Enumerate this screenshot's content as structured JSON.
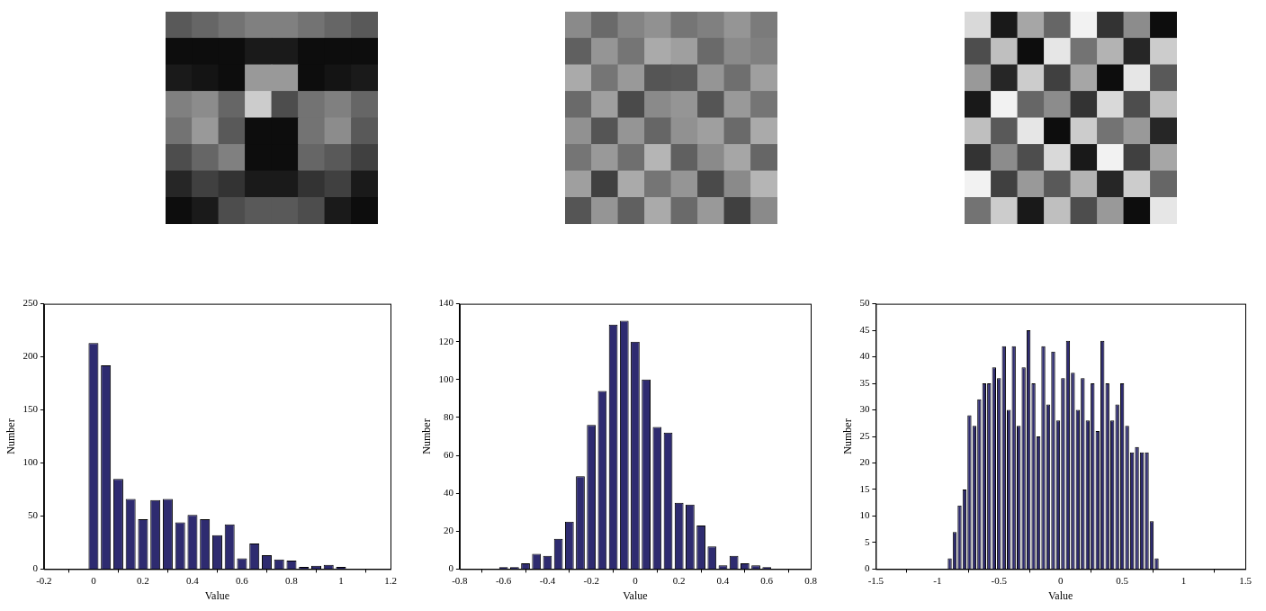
{
  "chart_data": [
    {
      "type": "image",
      "color": "gray",
      "tick_labels": false,
      "color_range": [
        0,
        1
      ],
      "cells": [
        [
          0.35,
          0.4,
          0.45,
          0.5,
          0.5,
          0.45,
          0.4,
          0.35
        ],
        [
          0.05,
          0.05,
          0.05,
          0.1,
          0.1,
          0.05,
          0.05,
          0.05
        ],
        [
          0.1,
          0.08,
          0.05,
          0.6,
          0.6,
          0.05,
          0.08,
          0.1
        ],
        [
          0.5,
          0.55,
          0.4,
          0.8,
          0.3,
          0.45,
          0.5,
          0.4
        ],
        [
          0.45,
          0.6,
          0.35,
          0.05,
          0.05,
          0.45,
          0.55,
          0.35
        ],
        [
          0.3,
          0.4,
          0.5,
          0.05,
          0.05,
          0.4,
          0.35,
          0.25
        ],
        [
          0.15,
          0.25,
          0.2,
          0.1,
          0.1,
          0.2,
          0.25,
          0.1
        ],
        [
          0.05,
          0.1,
          0.3,
          0.35,
          0.35,
          0.3,
          0.1,
          0.05
        ]
      ]
    },
    {
      "type": "image",
      "color": "gray",
      "tick_labels": false,
      "color_range": [
        -0.6,
        0.6
      ],
      "cells": [
        [
          0.05,
          -0.1,
          0.02,
          0.08,
          -0.05,
          0.0,
          0.1,
          -0.02
        ],
        [
          -0.15,
          0.1,
          -0.05,
          0.2,
          0.15,
          -0.1,
          0.05,
          0.0
        ],
        [
          0.2,
          -0.05,
          0.12,
          -0.2,
          -0.18,
          0.1,
          -0.08,
          0.15
        ],
        [
          -0.1,
          0.15,
          -0.25,
          0.05,
          0.1,
          -0.2,
          0.12,
          -0.05
        ],
        [
          0.08,
          -0.2,
          0.1,
          -0.12,
          0.08,
          0.15,
          -0.1,
          0.2
        ],
        [
          -0.05,
          0.12,
          -0.08,
          0.25,
          -0.15,
          0.05,
          0.18,
          -0.12
        ],
        [
          0.15,
          -0.3,
          0.2,
          -0.05,
          0.1,
          -0.25,
          0.05,
          0.25
        ],
        [
          -0.2,
          0.1,
          -0.15,
          0.2,
          -0.1,
          0.12,
          -0.3,
          0.05
        ]
      ]
    },
    {
      "type": "image",
      "color": "gray",
      "tick_labels": false,
      "color_range": [
        -1,
        1
      ],
      "cells": [
        [
          0.7,
          -0.8,
          0.3,
          -0.2,
          0.9,
          -0.6,
          0.1,
          -0.9
        ],
        [
          -0.4,
          0.5,
          -0.9,
          0.8,
          -0.1,
          0.4,
          -0.7,
          0.6
        ],
        [
          0.2,
          -0.7,
          0.6,
          -0.5,
          0.3,
          -0.9,
          0.8,
          -0.3
        ],
        [
          -0.8,
          0.9,
          -0.2,
          0.1,
          -0.6,
          0.7,
          -0.4,
          0.5
        ],
        [
          0.5,
          -0.3,
          0.8,
          -0.9,
          0.6,
          -0.1,
          0.2,
          -0.7
        ],
        [
          -0.6,
          0.1,
          -0.4,
          0.7,
          -0.8,
          0.9,
          -0.5,
          0.3
        ],
        [
          0.9,
          -0.5,
          0.2,
          -0.3,
          0.4,
          -0.7,
          0.6,
          -0.2
        ],
        [
          -0.1,
          0.6,
          -0.8,
          0.5,
          -0.4,
          0.2,
          -0.9,
          0.8
        ]
      ]
    },
    {
      "type": "histogram",
      "color": "#2e2b70",
      "grid": false,
      "x_label": "Value",
      "y_label": "Number",
      "bins": [
        -0.025,
        0.025,
        0.075,
        0.125,
        0.175,
        0.225,
        0.275,
        0.325,
        0.375,
        0.425,
        0.475,
        0.525,
        0.575,
        0.625,
        0.675,
        0.725,
        0.775,
        0.825,
        0.875,
        0.925,
        0.975,
        1.025
      ],
      "values": [
        213,
        192,
        85,
        66,
        47,
        65,
        66,
        44,
        51,
        47,
        32,
        42,
        10,
        24,
        13,
        9,
        8,
        2,
        3,
        4,
        2
      ],
      "xlim": [
        -0.2,
        1.2
      ],
      "xticks": [
        -0.2,
        0,
        0.2,
        0.4,
        0.6,
        0.8,
        1,
        1.2
      ],
      "ylim": [
        0,
        250
      ],
      "yticks": [
        0,
        50,
        100,
        150,
        200,
        250
      ]
    },
    {
      "type": "histogram",
      "color": "#2e2b70",
      "grid": false,
      "x_label": "Value",
      "y_label": "Number",
      "bins": [
        -0.725,
        -0.675,
        -0.625,
        -0.575,
        -0.525,
        -0.475,
        -0.425,
        -0.375,
        -0.325,
        -0.275,
        -0.225,
        -0.175,
        -0.125,
        -0.075,
        -0.025,
        0.025,
        0.075,
        0.125,
        0.175,
        0.225,
        0.275,
        0.325,
        0.375,
        0.425,
        0.475,
        0.525,
        0.575,
        0.625,
        0.675,
        0.725
      ],
      "values": [
        0,
        0,
        1,
        1,
        3,
        8,
        7,
        16,
        25,
        49,
        76,
        94,
        129,
        131,
        120,
        100,
        75,
        72,
        35,
        34,
        23,
        12,
        2,
        7,
        3,
        2,
        1,
        0,
        0
      ],
      "xlim": [
        -0.8,
        0.8
      ],
      "xticks": [
        -0.8,
        -0.6,
        -0.4,
        -0.2,
        0,
        0.2,
        0.4,
        0.6,
        0.8
      ],
      "ylim": [
        0,
        140
      ],
      "yticks": [
        0,
        20,
        40,
        60,
        80,
        100,
        120,
        140
      ]
    },
    {
      "type": "histogram",
      "color": "#2e2b70",
      "grid": false,
      "x_label": "Value",
      "y_label": "Number",
      "bins": [
        -0.96,
        -0.92,
        -0.88,
        -0.84,
        -0.8,
        -0.76,
        -0.72,
        -0.68,
        -0.64,
        -0.6,
        -0.56,
        -0.52,
        -0.48,
        -0.44,
        -0.4,
        -0.36,
        -0.32,
        -0.28,
        -0.24,
        -0.2,
        -0.16,
        -0.12,
        -0.08,
        -0.04,
        0,
        0.04,
        0.08,
        0.12,
        0.16,
        0.2,
        0.24,
        0.28,
        0.32,
        0.36,
        0.4,
        0.44,
        0.48,
        0.52,
        0.56,
        0.6,
        0.64,
        0.68,
        0.72,
        0.76,
        0.8,
        0.84,
        0.88,
        0.92,
        0.96
      ],
      "values": [
        0,
        2,
        7,
        12,
        15,
        29,
        27,
        32,
        35,
        35,
        38,
        36,
        42,
        30,
        42,
        27,
        38,
        45,
        35,
        25,
        42,
        31,
        41,
        28,
        36,
        43,
        37,
        30,
        36,
        28,
        35,
        26,
        43,
        35,
        28,
        31,
        35,
        27,
        22,
        23,
        22,
        22,
        9,
        2,
        0,
        0,
        0,
        0
      ],
      "xlim": [
        -1.5,
        1.5
      ],
      "xticks": [
        -1.5,
        -1,
        -0.5,
        0,
        0.5,
        1,
        1.5
      ],
      "ylim": [
        0,
        50
      ],
      "yticks": [
        0,
        5,
        10,
        15,
        20,
        25,
        30,
        35,
        40,
        45,
        50
      ]
    }
  ]
}
